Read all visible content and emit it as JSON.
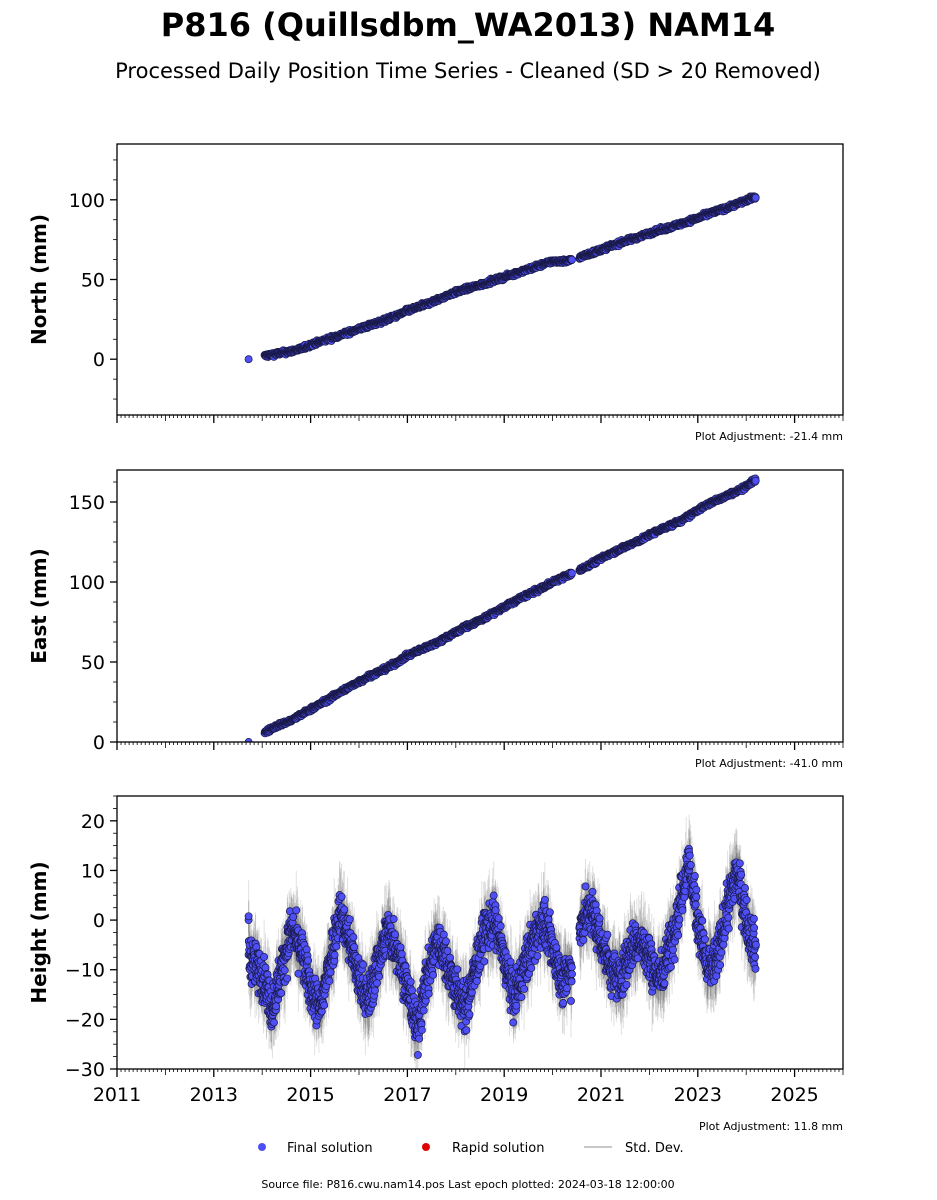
{
  "title": "P816 (Quillsdbm_WA2013) NAM14",
  "subtitle": "Processed Daily Position Time Series - Cleaned (SD > 20 Removed)",
  "source_text": "Source file: P816.cwu.nam14.pos  Last epoch plotted: 2024-03-18 12:00:00",
  "legend": [
    {
      "label": "Final solution",
      "color": "#4f4ff7",
      "marker": "circle"
    },
    {
      "label": "Rapid solution",
      "color": "#e00000",
      "marker": "circle"
    },
    {
      "label": "Std. Dev.",
      "color": "#c8c8c8",
      "marker": "line"
    }
  ],
  "chart_data": [
    {
      "type": "scatter",
      "name": "north",
      "ylabel": "North (mm)",
      "adjustment": "Plot Adjustment: -21.4 mm",
      "xlim": [
        2011,
        2026
      ],
      "ylim": [
        -35,
        135
      ],
      "yticks": [
        0,
        50,
        100
      ],
      "show_xticklabels": false,
      "x": [
        2013.72,
        2014.05,
        2014.3,
        2014.6,
        2014.8,
        2015.0,
        2015.3,
        2015.6,
        2015.9,
        2016.2,
        2016.5,
        2016.8,
        2017.0,
        2017.3,
        2017.6,
        2017.9,
        2018.2,
        2018.5,
        2018.8,
        2019.1,
        2019.4,
        2019.7,
        2020.0,
        2020.3,
        2020.6,
        2020.9,
        2021.2,
        2021.5,
        2021.8,
        2022.1,
        2022.4,
        2022.7,
        2023.0,
        2023.3,
        2023.6,
        2023.9,
        2024.2
      ],
      "y": [
        0,
        2,
        3.5,
        5,
        6.5,
        9,
        12,
        15,
        18,
        21,
        24,
        27.5,
        30.5,
        33.5,
        37,
        41,
        44,
        46.5,
        49.5,
        52.5,
        55.5,
        58.5,
        61.5,
        61.5,
        64.5,
        67.5,
        71,
        74,
        77,
        80,
        82.5,
        85.5,
        88.5,
        92,
        95,
        98.5,
        102
      ]
    },
    {
      "type": "scatter",
      "name": "east",
      "ylabel": "East (mm)",
      "adjustment": "Plot Adjustment: -41.0 mm",
      "xlim": [
        2011,
        2026
      ],
      "ylim": [
        0,
        170
      ],
      "yticks": [
        0,
        50,
        100,
        150
      ],
      "show_xticklabels": false,
      "x": [
        2013.72,
        2014.05,
        2014.3,
        2014.6,
        2014.8,
        2015.0,
        2015.3,
        2015.6,
        2015.9,
        2016.2,
        2016.5,
        2016.8,
        2017.0,
        2017.3,
        2017.6,
        2017.9,
        2018.2,
        2018.5,
        2018.8,
        2019.1,
        2019.4,
        2019.7,
        2020.0,
        2020.3,
        2020.6,
        2020.9,
        2021.2,
        2021.5,
        2021.8,
        2022.1,
        2022.4,
        2022.7,
        2023.0,
        2023.3,
        2023.6,
        2023.9,
        2024.2
      ],
      "y": [
        0,
        6,
        10,
        13.5,
        17,
        20.5,
        25.5,
        31,
        36,
        41,
        45,
        50,
        54,
        58,
        62,
        67,
        72,
        76,
        81,
        86,
        91,
        95,
        100,
        104,
        108,
        113,
        118,
        122,
        126,
        131,
        135,
        139,
        145,
        150,
        154,
        158,
        164
      ]
    },
    {
      "type": "scatter",
      "name": "height",
      "ylabel": "Height (mm)",
      "adjustment": "Plot Adjustment: 11.8 mm",
      "xlim": [
        2011,
        2026
      ],
      "ylim": [
        -30,
        25
      ],
      "yticks": [
        -30,
        -20,
        -10,
        0,
        10,
        20
      ],
      "show_xticklabels": true,
      "xticks": [
        2011,
        2013,
        2015,
        2017,
        2019,
        2021,
        2023,
        2025
      ],
      "x": [
        2013.72,
        2013.72,
        2014.05,
        2014.2,
        2014.4,
        2014.6,
        2014.8,
        2015.0,
        2015.2,
        2015.4,
        2015.6,
        2015.8,
        2016.0,
        2016.2,
        2016.4,
        2016.6,
        2016.8,
        2017.0,
        2017.2,
        2017.4,
        2017.6,
        2017.8,
        2018.0,
        2018.2,
        2018.4,
        2018.6,
        2018.8,
        2019.0,
        2019.2,
        2019.4,
        2019.6,
        2019.8,
        2020.0,
        2020.2,
        2020.4,
        2020.6,
        2020.8,
        2021.0,
        2021.2,
        2021.4,
        2021.6,
        2021.8,
        2022.0,
        2022.2,
        2022.4,
        2022.6,
        2022.8,
        2023.0,
        2023.2,
        2023.4,
        2023.6,
        2023.8,
        2024.0,
        2024.2
      ],
      "y": [
        0,
        -7,
        -12,
        -18,
        -10,
        -2,
        -6,
        -14,
        -18,
        -8,
        2,
        -4,
        -12,
        -16,
        -8,
        -2,
        -6,
        -14,
        -22,
        -12,
        -4,
        -8,
        -14,
        -18,
        -10,
        -2,
        0,
        -8,
        -16,
        -10,
        -4,
        0,
        -6,
        -12,
        -10,
        0,
        2,
        -4,
        -10,
        -12,
        -6,
        -4,
        -8,
        -12,
        -6,
        2,
        12,
        0,
        -10,
        -8,
        2,
        10,
        0,
        -6
      ]
    }
  ]
}
